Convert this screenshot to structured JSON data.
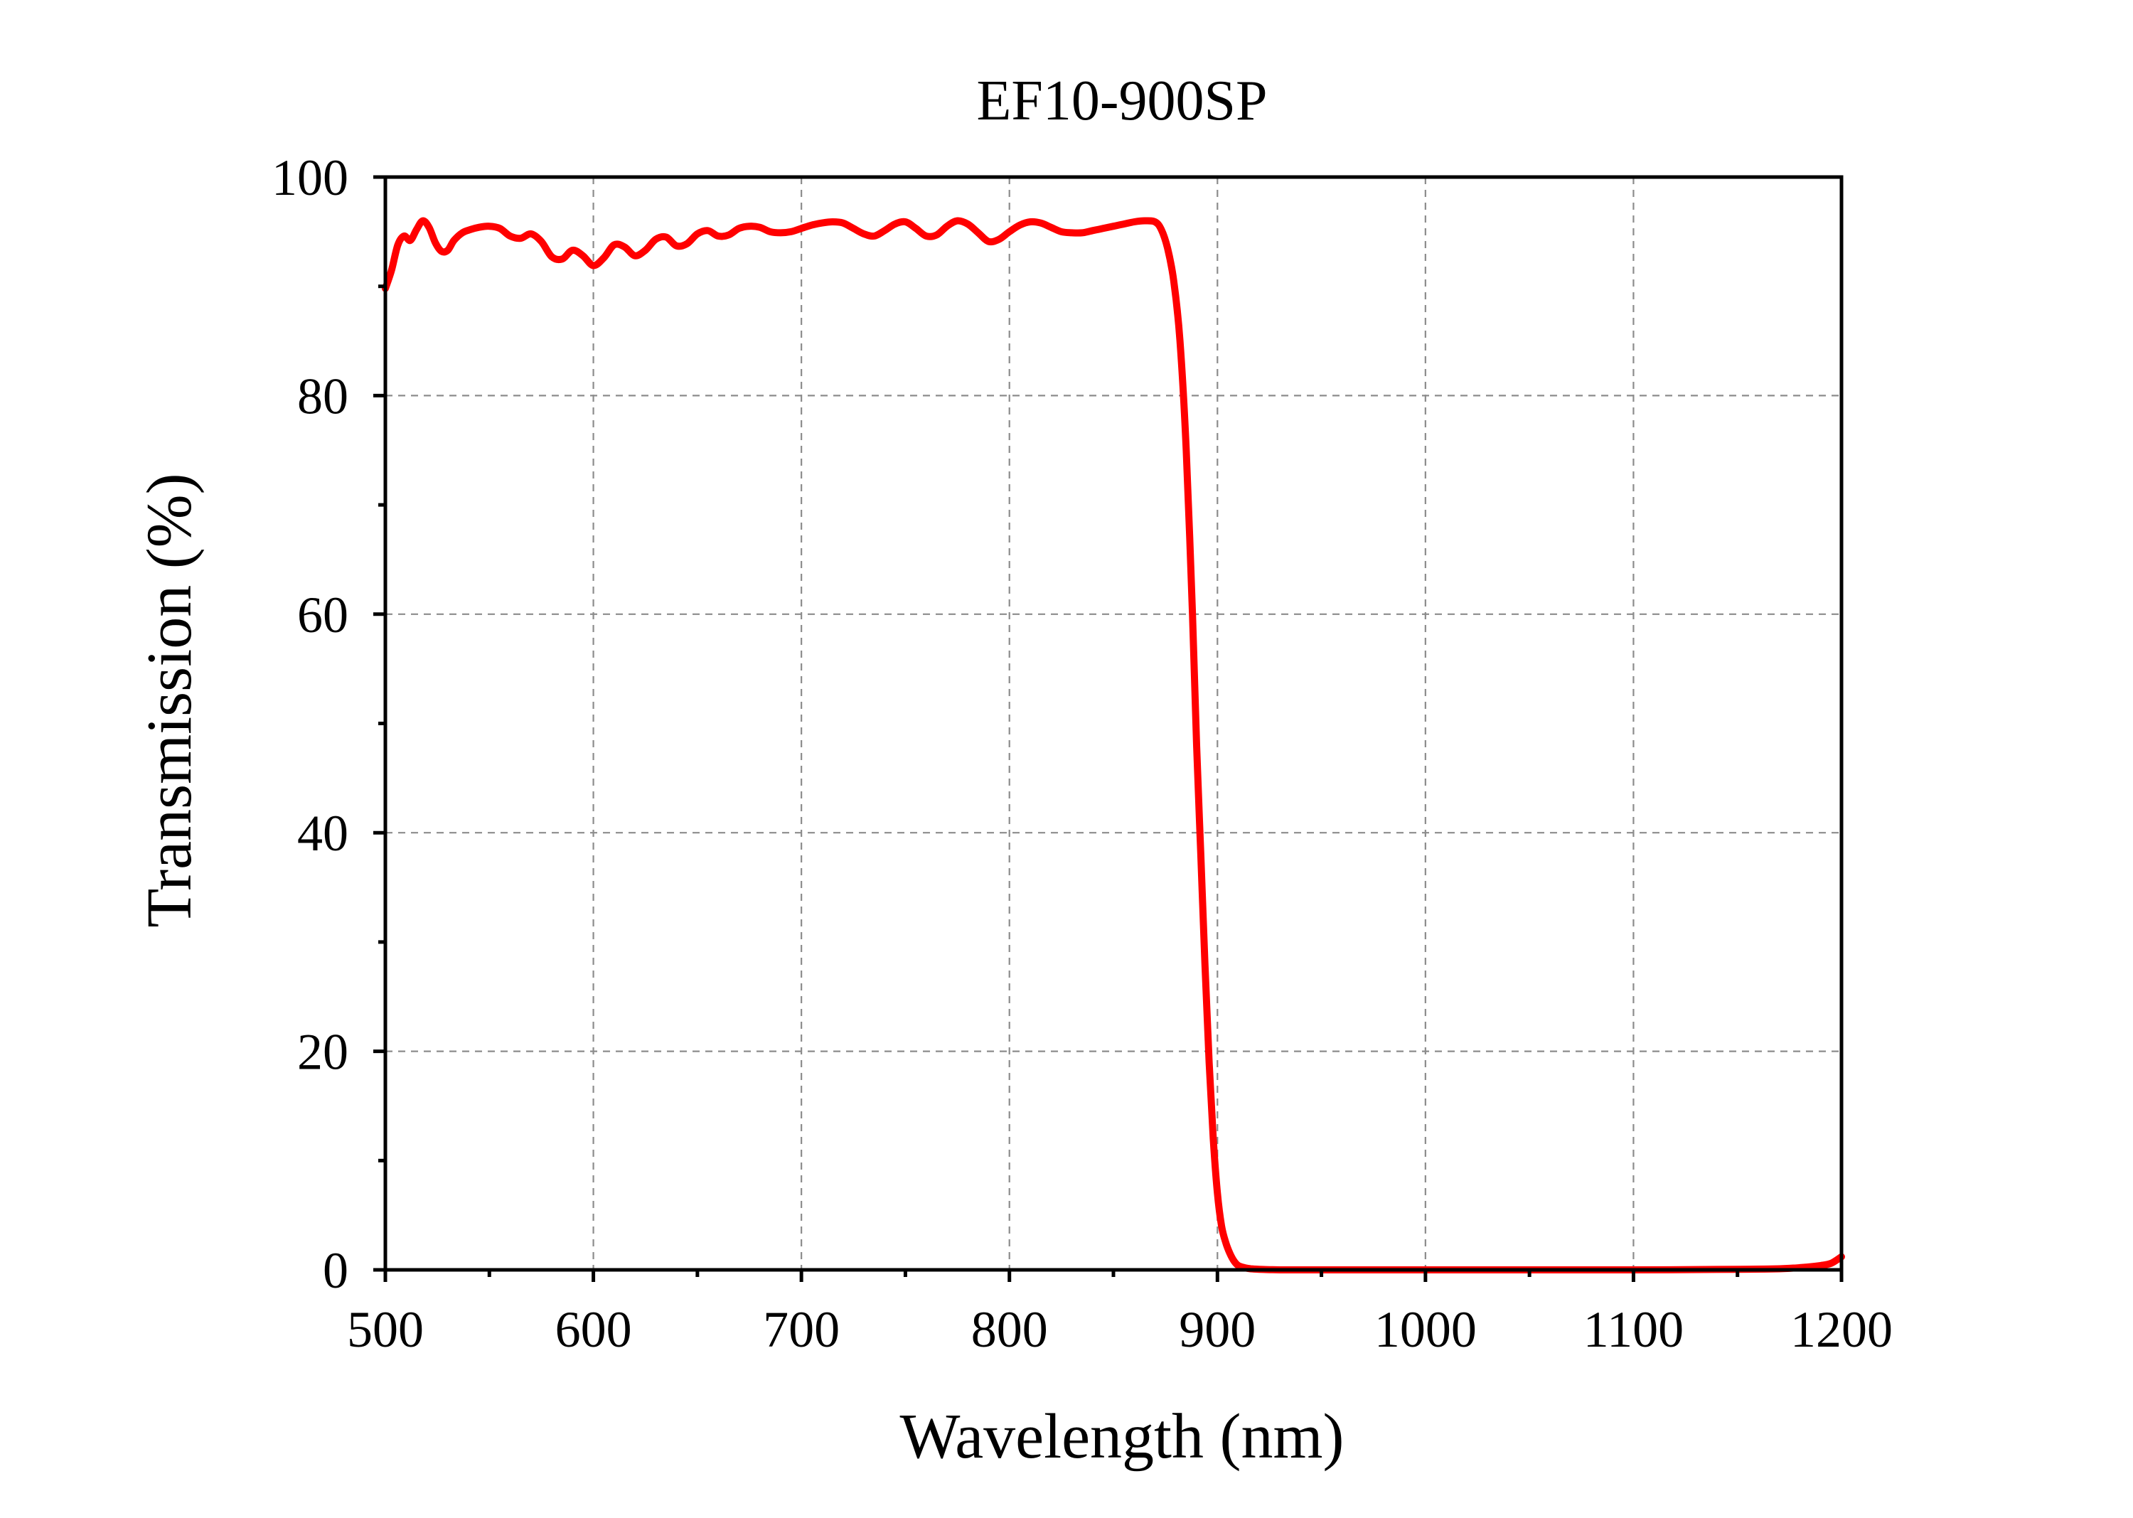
{
  "chart_data": {
    "type": "line",
    "title": "EF10-900SP",
    "xlabel": "Wavelength (nm)",
    "ylabel": "Transmission (%)",
    "xlim": [
      500,
      1200
    ],
    "ylim": [
      0,
      100
    ],
    "x_ticks": [
      500,
      600,
      700,
      800,
      900,
      1000,
      1100,
      1200
    ],
    "x_tick_labels": [
      "500",
      "600",
      "700",
      "800",
      "900",
      "1000",
      "1100",
      "1200"
    ],
    "y_ticks": [
      0,
      20,
      40,
      60,
      80,
      100
    ],
    "y_tick_labels": [
      "0",
      "20",
      "40",
      "60",
      "80",
      "100"
    ],
    "grid": true,
    "line_color": "#ff0000",
    "series": [
      {
        "x": [
          500,
          503,
          506,
          509,
          512,
          515,
          518,
          521,
          524,
          527,
          530,
          533,
          537,
          541,
          545,
          550,
          555,
          560,
          565,
          570,
          575,
          580,
          585,
          590,
          595,
          600,
          605,
          610,
          615,
          620,
          625,
          630,
          635,
          640,
          645,
          650,
          655,
          660,
          665,
          670,
          675,
          680,
          685,
          690,
          695,
          700,
          705,
          710,
          715,
          720,
          725,
          730,
          735,
          740,
          745,
          750,
          755,
          760,
          765,
          770,
          775,
          780,
          785,
          790,
          795,
          800,
          805,
          810,
          815,
          820,
          825,
          830,
          835,
          840,
          845,
          850,
          855,
          860,
          865,
          870,
          873,
          876,
          879,
          882,
          885,
          888,
          890,
          892,
          894,
          896,
          898,
          900,
          902,
          904,
          906,
          908,
          910,
          913,
          916,
          920,
          925,
          930,
          940,
          950,
          970,
          1000,
          1050,
          1100,
          1150,
          1170,
          1180,
          1190,
          1195,
          1200
        ],
        "y": [
          89.8,
          91.5,
          93.8,
          94.6,
          94.2,
          95.2,
          96.0,
          95.4,
          94.0,
          93.2,
          93.3,
          94.2,
          94.9,
          95.2,
          95.4,
          95.5,
          95.3,
          94.6,
          94.4,
          94.8,
          94.1,
          92.7,
          92.5,
          93.3,
          92.8,
          91.9,
          92.6,
          93.8,
          93.6,
          92.8,
          93.3,
          94.3,
          94.5,
          93.7,
          93.9,
          94.8,
          95.1,
          94.6,
          94.7,
          95.3,
          95.5,
          95.4,
          95.0,
          94.9,
          95.0,
          95.3,
          95.6,
          95.8,
          95.9,
          95.8,
          95.3,
          94.8,
          94.6,
          95.1,
          95.7,
          95.9,
          95.3,
          94.6,
          94.7,
          95.5,
          96.0,
          95.7,
          94.9,
          94.1,
          94.3,
          95.0,
          95.6,
          95.9,
          95.8,
          95.4,
          95.0,
          94.9,
          94.9,
          95.1,
          95.3,
          95.5,
          95.7,
          95.9,
          96.0,
          95.9,
          95.2,
          93.5,
          90.5,
          85.0,
          75.0,
          60.0,
          48.0,
          38.0,
          28.0,
          19.0,
          12.0,
          7.0,
          4.0,
          2.5,
          1.5,
          0.8,
          0.4,
          0.2,
          0.1,
          0.05,
          0.02,
          0.0,
          0.0,
          0.0,
          0.0,
          0.0,
          0.0,
          0.0,
          0.05,
          0.1,
          0.2,
          0.4,
          0.6,
          1.2
        ]
      }
    ]
  }
}
